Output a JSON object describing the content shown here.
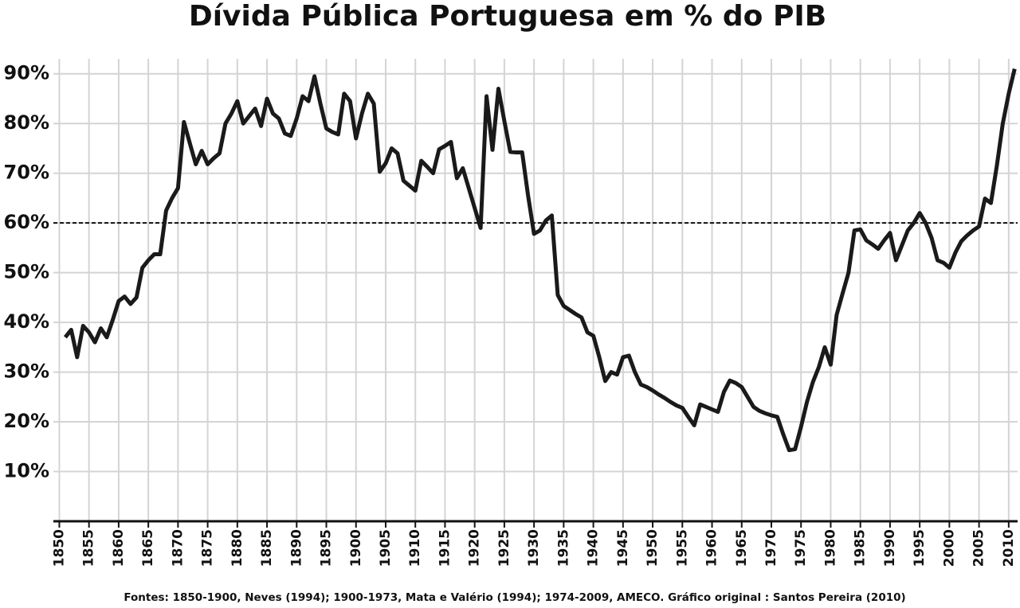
{
  "chart_data": {
    "type": "line",
    "title": "Dívida Pública Portuguesa em % do PIB",
    "source": "Fontes: 1850-1900, Neves (1994); 1900-1973, Mata e Valério (1994); 1974-2009, AMECO. Gráfico original : Santos Pereira (2010)",
    "x": [
      1851,
      1852,
      1853,
      1854,
      1855,
      1856,
      1857,
      1858,
      1859,
      1860,
      1861,
      1862,
      1863,
      1864,
      1865,
      1866,
      1867,
      1868,
      1869,
      1870,
      1871,
      1872,
      1873,
      1874,
      1875,
      1876,
      1877,
      1878,
      1879,
      1880,
      1881,
      1882,
      1883,
      1884,
      1885,
      1886,
      1887,
      1888,
      1889,
      1890,
      1891,
      1892,
      1893,
      1894,
      1895,
      1896,
      1897,
      1898,
      1899,
      1900,
      1901,
      1902,
      1903,
      1904,
      1905,
      1906,
      1907,
      1908,
      1909,
      1910,
      1911,
      1912,
      1913,
      1914,
      1915,
      1916,
      1917,
      1918,
      1919,
      1920,
      1921,
      1922,
      1923,
      1924,
      1925,
      1926,
      1927,
      1928,
      1929,
      1930,
      1931,
      1932,
      1933,
      1934,
      1935,
      1936,
      1937,
      1938,
      1939,
      1940,
      1941,
      1942,
      1943,
      1944,
      1945,
      1946,
      1947,
      1948,
      1949,
      1950,
      1951,
      1952,
      1953,
      1954,
      1955,
      1956,
      1957,
      1958,
      1959,
      1960,
      1961,
      1962,
      1963,
      1964,
      1965,
      1966,
      1967,
      1968,
      1969,
      1970,
      1971,
      1972,
      1973,
      1974,
      1975,
      1976,
      1977,
      1978,
      1979,
      1980,
      1981,
      1982,
      1983,
      1984,
      1985,
      1986,
      1987,
      1988,
      1989,
      1990,
      1991,
      1992,
      1993,
      1994,
      1995,
      1996,
      1997,
      1998,
      1999,
      2000,
      2001,
      2002,
      2003,
      2004,
      2005,
      2006,
      2007,
      2008,
      2009,
      2010,
      2011
    ],
    "series": [
      {
        "color": "#1a1a1a",
        "values": [
          37,
          38.5,
          33,
          39.3,
          38,
          36,
          38.8,
          37,
          40.5,
          44.3,
          45.2,
          43.7,
          45,
          51,
          52.5,
          53.7,
          53.7,
          62.5,
          65,
          67,
          80.3,
          76,
          71.8,
          74.5,
          71.8,
          73,
          74,
          80,
          82,
          84.5,
          80,
          81.5,
          83,
          79.5,
          85,
          82,
          81,
          78,
          77.5,
          81,
          85.5,
          84.5,
          89.5,
          84,
          79,
          78.3,
          77.8,
          86,
          84.5,
          77,
          82,
          86,
          84,
          70.3,
          72,
          75,
          74,
          68.5,
          67.5,
          66.5,
          72.5,
          71.3,
          70,
          74.8,
          75.5,
          76.3,
          69,
          71,
          67,
          63,
          59,
          85.5,
          74.7,
          87,
          80.5,
          74.3,
          74.2,
          74.2,
          65.5,
          57.8,
          58.5,
          60.5,
          61.5,
          45.5,
          43.3,
          42.5,
          41.7,
          41,
          38,
          37.3,
          33,
          28.2,
          30,
          29.5,
          33,
          33.3,
          30,
          27.5,
          27,
          26.3,
          25.5,
          24.8,
          24,
          23.3,
          22.8,
          21,
          19.3,
          23.5,
          23,
          22.5,
          22,
          26,
          28.3,
          27.8,
          27,
          25,
          23,
          22.2,
          21.7,
          21.3,
          21,
          17.5,
          14.3,
          14.5,
          19,
          24,
          28,
          31,
          35,
          31.5,
          41.5,
          45.8,
          50,
          58.5,
          58.7,
          56.5,
          55.7,
          54.8,
          56.5,
          58,
          52.5,
          55.5,
          58.5,
          60,
          62,
          60,
          57,
          52.5,
          52,
          51,
          54,
          56.3,
          57.5,
          58.5,
          59.3,
          64.9,
          64,
          71.5,
          80,
          86,
          91
        ]
      }
    ],
    "reference_line": 60,
    "xlim": [
      1849,
      2011.5
    ],
    "xticks": [
      1850,
      1855,
      1860,
      1865,
      1870,
      1875,
      1880,
      1885,
      1890,
      1895,
      1900,
      1905,
      1910,
      1915,
      1920,
      1925,
      1930,
      1935,
      1940,
      1945,
      1950,
      1955,
      1960,
      1965,
      1970,
      1975,
      1980,
      1985,
      1990,
      1995,
      2000,
      2005,
      2010
    ],
    "ylim": [
      0,
      93
    ],
    "yticks": [
      {
        "value": 10,
        "label": "10%"
      },
      {
        "value": 20,
        "label": "20%"
      },
      {
        "value": 30,
        "label": "30%"
      },
      {
        "value": 40,
        "label": "40%"
      },
      {
        "value": 50,
        "label": "50%"
      },
      {
        "value": 60,
        "label": "60%"
      },
      {
        "value": 70,
        "label": "70%"
      },
      {
        "value": 80,
        "label": "80%"
      },
      {
        "value": 90,
        "label": "90%"
      }
    ],
    "grid": true
  }
}
